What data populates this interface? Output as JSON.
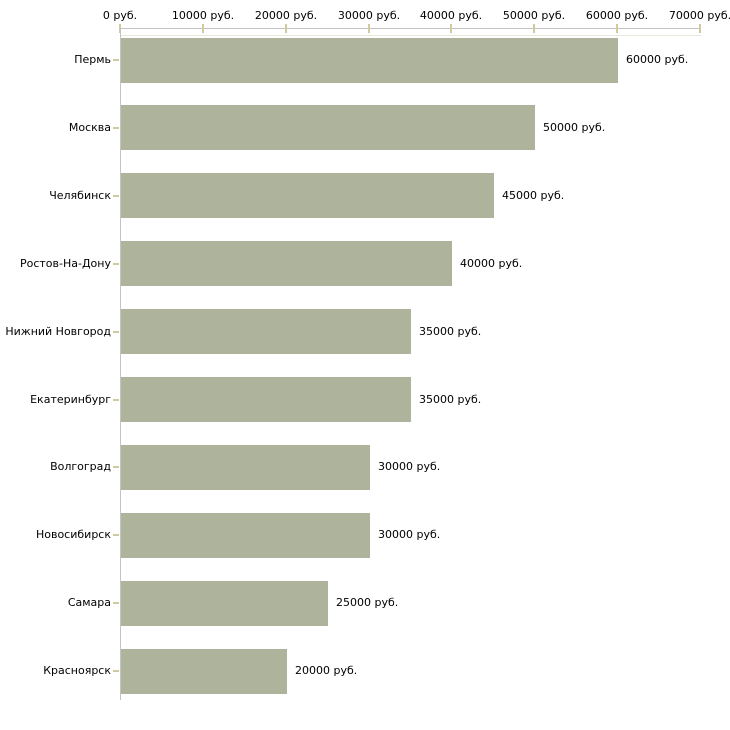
{
  "chart_data": {
    "type": "bar",
    "orientation": "horizontal",
    "title": "",
    "xlabel": "",
    "ylabel": "",
    "grid": false,
    "legend": "none",
    "categories": [
      "Пермь",
      "Москва",
      "Челябинск",
      "Ростов-На-Дону",
      "Нижний Новгород",
      "Екатеринбург",
      "Волгоград",
      "Новосибирск",
      "Самара",
      "Красноярск"
    ],
    "values": [
      60000,
      50000,
      45000,
      40000,
      35000,
      35000,
      30000,
      30000,
      25000,
      20000
    ],
    "value_labels": [
      "60000 руб.",
      "50000 руб.",
      "45000 руб.",
      "40000 руб.",
      "35000 руб.",
      "35000 руб.",
      "30000 руб.",
      "30000 руб.",
      "25000 руб.",
      "20000 руб."
    ],
    "x_ticks": [
      0,
      10000,
      20000,
      30000,
      40000,
      50000,
      60000,
      70000
    ],
    "x_tick_labels": [
      "0 руб.",
      "10000 руб.",
      "20000 руб.",
      "30000 руб.",
      "40000 руб.",
      "50000 руб.",
      "60000 руб.",
      "70000 руб."
    ],
    "xlim": [
      0,
      70000
    ],
    "colors": {
      "bar": "#aeb49b",
      "axis_line": "#c3c3c3",
      "tick_mark": "#cecb9e",
      "plot_border": "#e9e9dc",
      "text": "#000000",
      "background": "#ffffff"
    }
  }
}
